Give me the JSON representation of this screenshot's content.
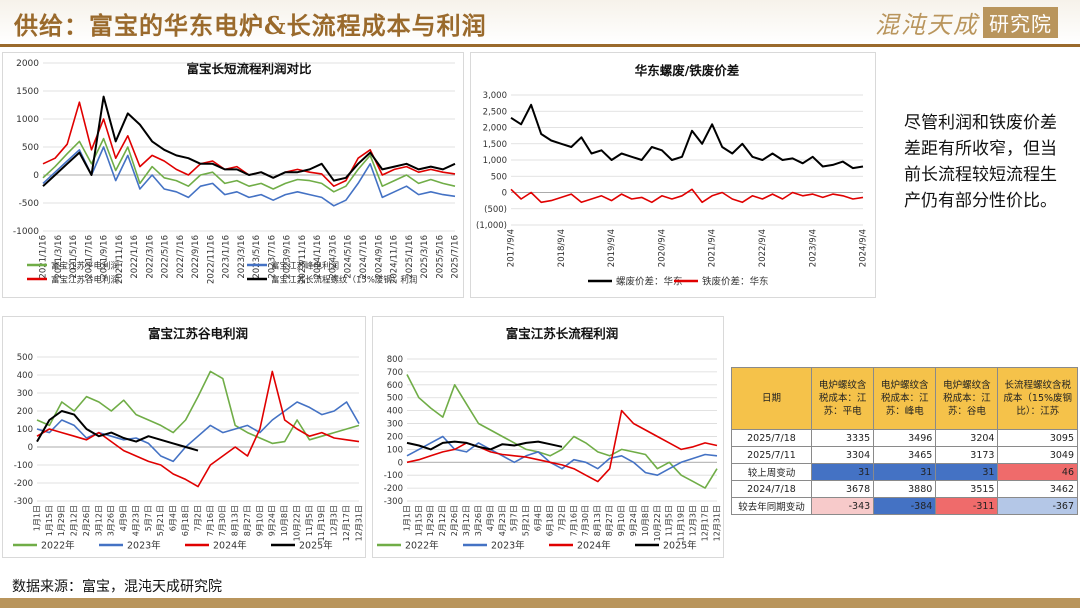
{
  "page": {
    "title": "供给：富宝的华东电炉&长流程成本与利润",
    "logo_text": "混沌天成",
    "logo_box": "研究院",
    "source": "数据来源：富宝，混沌天成研究院",
    "side_text": "尽管利润和铁废价差差距有所收窄，但当前长流程较短流程生产仍有部分性价比。"
  },
  "colors": {
    "gold": "#9a6a2c",
    "green": "#70ad47",
    "blue": "#4472c4",
    "red": "#e00000",
    "black": "#000000",
    "table_header": "#f5c24a",
    "cell_blue": "#4472c4",
    "cell_red": "#ef6b6b",
    "cell_pink": "#f7caca",
    "cell_lightblue": "#b4c7e7"
  },
  "chart_data": [
    {
      "id": "c1",
      "type": "line",
      "title": "富宝长短流程利润对比",
      "ylim": [
        -1000,
        2000
      ],
      "yticks": [
        -1000,
        -500,
        0,
        500,
        1000,
        1500,
        2000
      ],
      "xticks": [
        "2021/1/16",
        "2021/3/16",
        "2021/5/16",
        "2021/7/16",
        "2021/9/16",
        "2021/11/16",
        "2022/1/16",
        "2022/3/16",
        "2022/5/16",
        "2022/7/16",
        "2022/9/16",
        "2022/11/16",
        "2023/1/16",
        "2023/3/16",
        "2023/5/16",
        "2023/7/16",
        "2023/9/16",
        "2023/11/16",
        "2024/1/16",
        "2024/3/16",
        "2024/5/16",
        "2024/7/16",
        "2024/9/16",
        "2024/11/16",
        "2025/1/16",
        "2025/3/16",
        "2025/5/16",
        "2025/7/16"
      ],
      "series": [
        {
          "name": "富宝江苏平电利润",
          "color": "green",
          "values": [
            -50,
            150,
            380,
            600,
            200,
            650,
            80,
            500,
            -150,
            150,
            -50,
            -100,
            -200,
            0,
            50,
            -150,
            -100,
            -200,
            -150,
            -250,
            -150,
            -80,
            -100,
            -150,
            -300,
            -200,
            100,
            350,
            -200,
            -100,
            0,
            -150,
            -80,
            -150,
            -200
          ]
        },
        {
          "name": "富宝江苏峰电利润",
          "color": "blue",
          "values": [
            -150,
            50,
            250,
            450,
            0,
            500,
            -100,
            350,
            -250,
            0,
            -250,
            -300,
            -400,
            -200,
            -150,
            -350,
            -300,
            -400,
            -350,
            -450,
            -350,
            -300,
            -350,
            -400,
            -550,
            -450,
            -150,
            200,
            -400,
            -300,
            -200,
            -350,
            -300,
            -350,
            -380
          ]
        },
        {
          "name": "富宝江苏谷电利润",
          "color": "red",
          "values": [
            200,
            300,
            550,
            1300,
            450,
            1000,
            300,
            700,
            150,
            350,
            250,
            100,
            0,
            200,
            250,
            100,
            150,
            0,
            50,
            -50,
            50,
            100,
            50,
            20,
            -200,
            -100,
            300,
            450,
            0,
            100,
            150,
            50,
            100,
            50,
            20
          ]
        },
        {
          "name": "富宝江苏长流程螺纹（15%废钢）利润",
          "color": "black",
          "values": [
            -200,
            0,
            200,
            400,
            0,
            1400,
            600,
            1100,
            900,
            600,
            450,
            350,
            300,
            200,
            200,
            100,
            100,
            0,
            50,
            -50,
            50,
            50,
            100,
            200,
            -100,
            -50,
            200,
            400,
            100,
            150,
            200,
            100,
            150,
            100,
            200
          ]
        }
      ]
    },
    {
      "id": "c2",
      "type": "line",
      "title": "华东螺废/铁废价差",
      "ylim": [
        -1000,
        3000
      ],
      "yticks": [
        -1000,
        -500,
        0,
        500,
        1000,
        1500,
        2000,
        2500,
        3000
      ],
      "ytick_labels": [
        "(1,000)",
        "(500)",
        "0",
        "500",
        "1,000",
        "1,500",
        "2,000",
        "2,500",
        "3,000"
      ],
      "xticks": [
        "2017/9/4",
        "2018/9/4",
        "2019/9/4",
        "2020/9/4",
        "2021/9/4",
        "2022/9/4",
        "2023/9/4",
        "2024/9/4"
      ],
      "series": [
        {
          "name": "螺废价差：华东",
          "color": "black",
          "values": [
            2300,
            2100,
            2700,
            1800,
            1600,
            1500,
            1400,
            1700,
            1200,
            1300,
            1000,
            1200,
            1100,
            1000,
            1400,
            1300,
            1000,
            1100,
            1900,
            1500,
            2100,
            1400,
            1200,
            1500,
            1100,
            1000,
            1200,
            1000,
            1050,
            900,
            1100,
            800,
            850,
            950,
            750,
            800
          ]
        },
        {
          "name": "铁废价差：华东",
          "color": "red",
          "values": [
            100,
            -200,
            0,
            -300,
            -250,
            -150,
            -50,
            -300,
            -200,
            -100,
            -250,
            -50,
            -200,
            -150,
            -300,
            -100,
            -200,
            -100,
            100,
            -300,
            -100,
            0,
            -200,
            -300,
            -100,
            -200,
            -50,
            -200,
            0,
            -100,
            -50,
            -150,
            -50,
            -100,
            -200,
            -150
          ]
        }
      ]
    },
    {
      "id": "c3",
      "type": "line",
      "title": "富宝江苏谷电利润",
      "ylim": [
        -300,
        500
      ],
      "yticks": [
        -300,
        -200,
        -100,
        0,
        100,
        200,
        300,
        400,
        500
      ],
      "xticks": [
        "1月1日",
        "1月15日",
        "1月29日",
        "2月12日",
        "2月26日",
        "3月12日",
        "3月26日",
        "4月9日",
        "4月23日",
        "5月7日",
        "5月21日",
        "6月4日",
        "6月18日",
        "7月2日",
        "7月16日",
        "7月30日",
        "8月13日",
        "8月27日",
        "9月10日",
        "9月24日",
        "10月8日",
        "10月22日",
        "11月5日",
        "11月19日",
        "12月3日",
        "12月17日",
        "12月31日"
      ],
      "series": [
        {
          "name": "2022年",
          "color": "green",
          "values": [
            150,
            120,
            250,
            200,
            280,
            250,
            200,
            260,
            180,
            150,
            120,
            80,
            150,
            280,
            420,
            380,
            120,
            80,
            50,
            20,
            30,
            150,
            40,
            60,
            80,
            100,
            120
          ]
        },
        {
          "name": "2023年",
          "color": "blue",
          "values": [
            100,
            80,
            150,
            120,
            50,
            80,
            60,
            40,
            50,
            20,
            -50,
            -80,
            0,
            60,
            120,
            80,
            100,
            120,
            80,
            150,
            200,
            250,
            220,
            180,
            200,
            250,
            130
          ]
        },
        {
          "name": "2024年",
          "color": "red",
          "values": [
            60,
            100,
            80,
            60,
            40,
            80,
            30,
            -20,
            -50,
            -80,
            -100,
            -150,
            -180,
            -220,
            -100,
            -50,
            0,
            -50,
            100,
            420,
            150,
            100,
            60,
            80,
            50,
            40,
            30
          ]
        },
        {
          "name": "2025年",
          "color": "black",
          "values": [
            30,
            150,
            200,
            180,
            100,
            60,
            80,
            50,
            30,
            60,
            40,
            20,
            0,
            -20,
            null,
            null,
            null,
            null,
            null,
            null,
            null,
            null,
            null,
            null,
            null,
            null,
            null
          ]
        }
      ]
    },
    {
      "id": "c4",
      "type": "line",
      "title": "富宝江苏长流程利润",
      "ylim": [
        -300,
        800
      ],
      "yticks": [
        -300,
        -200,
        -100,
        0,
        100,
        200,
        300,
        400,
        500,
        600,
        700,
        800
      ],
      "xticks": [
        "1月1日",
        "1月15日",
        "1月29日",
        "2月12日",
        "2月26日",
        "3月12日",
        "3月26日",
        "4月9日",
        "4月23日",
        "5月7日",
        "5月21日",
        "6月4日",
        "6月18日",
        "7月2日",
        "7月16日",
        "7月30日",
        "8月13日",
        "8月27日",
        "9月10日",
        "9月24日",
        "10月8日",
        "10月22日",
        "11月5日",
        "11月19日",
        "12月3日",
        "12月17日",
        "12月31日"
      ],
      "series": [
        {
          "name": "2022年",
          "color": "green",
          "values": [
            680,
            500,
            420,
            350,
            600,
            450,
            300,
            250,
            200,
            150,
            100,
            80,
            50,
            100,
            200,
            150,
            80,
            50,
            100,
            80,
            60,
            -50,
            0,
            -100,
            -150,
            -200,
            -50
          ]
        },
        {
          "name": "2023年",
          "color": "blue",
          "values": [
            50,
            100,
            150,
            200,
            100,
            80,
            150,
            100,
            50,
            0,
            50,
            80,
            0,
            -50,
            20,
            0,
            -50,
            30,
            50,
            0,
            -80,
            -100,
            -50,
            0,
            30,
            60,
            50
          ]
        },
        {
          "name": "2024年",
          "color": "red",
          "values": [
            0,
            20,
            50,
            80,
            100,
            150,
            120,
            80,
            60,
            50,
            40,
            20,
            0,
            -20,
            -50,
            -100,
            -150,
            -50,
            400,
            300,
            250,
            200,
            150,
            100,
            120,
            150,
            130
          ]
        },
        {
          "name": "2025年",
          "color": "black",
          "values": [
            150,
            130,
            100,
            150,
            160,
            150,
            120,
            100,
            140,
            130,
            150,
            160,
            140,
            120,
            null,
            null,
            null,
            null,
            null,
            null,
            null,
            null,
            null,
            null,
            null,
            null,
            null
          ]
        }
      ]
    }
  ],
  "table": {
    "headers": [
      "日期",
      "电炉螺纹含税成本：江苏：平电",
      "电炉螺纹含税成本：江苏：峰电",
      "电炉螺纹含税成本：江苏：谷电",
      "长流程螺纹含税成本（15%废钢比）：江苏"
    ],
    "rows": [
      {
        "label": "2025/7/18",
        "cells": [
          "3335",
          "3496",
          "3204",
          "3095"
        ],
        "fills": [
          "",
          "",
          "",
          ""
        ]
      },
      {
        "label": "2025/7/11",
        "cells": [
          "3304",
          "3465",
          "3173",
          "3049"
        ],
        "fills": [
          "",
          "",
          "",
          ""
        ]
      },
      {
        "label": "较上周变动",
        "cells": [
          "31",
          "31",
          "31",
          "46"
        ],
        "fills": [
          "cell_blue",
          "cell_blue",
          "cell_blue",
          "cell_red"
        ]
      },
      {
        "label": "2024/7/18",
        "cells": [
          "3678",
          "3880",
          "3515",
          "3462"
        ],
        "fills": [
          "",
          "",
          "",
          ""
        ]
      },
      {
        "label": "较去年同期变动",
        "cells": [
          "-343",
          "-384",
          "-311",
          "-367"
        ],
        "fills": [
          "cell_pink",
          "cell_blue",
          "cell_red",
          "cell_lightblue"
        ]
      }
    ]
  }
}
